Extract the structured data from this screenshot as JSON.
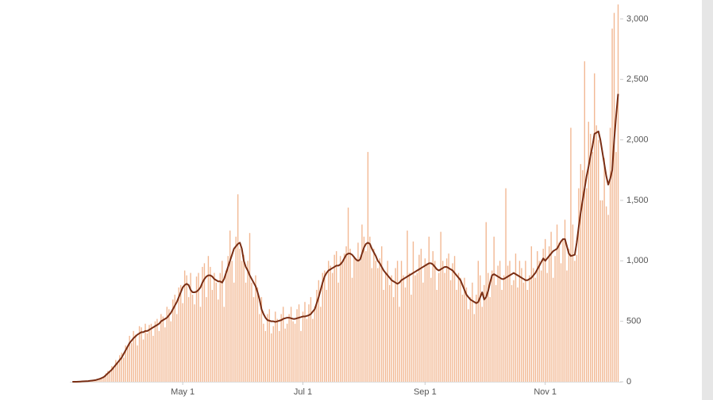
{
  "chart_data": {
    "type": "bar",
    "categories": [
      null,
      null,
      null,
      null,
      null,
      null,
      null,
      null,
      null,
      null,
      null,
      null,
      null,
      null,
      null,
      null,
      null,
      null,
      null,
      null,
      null,
      null,
      null,
      null,
      null,
      null,
      null,
      null,
      null,
      null,
      null,
      null,
      null,
      null,
      null,
      null,
      null,
      null,
      null,
      null,
      null,
      null,
      null,
      null,
      null,
      null,
      null,
      null,
      null,
      null,
      null,
      null,
      null,
      null,
      null,
      null,
      "May 1",
      null,
      null,
      null,
      null,
      null,
      null,
      null,
      null,
      null,
      null,
      null,
      null,
      null,
      null,
      null,
      null,
      null,
      null,
      null,
      null,
      null,
      null,
      null,
      null,
      null,
      null,
      null,
      null,
      null,
      null,
      null,
      null,
      null,
      null,
      null,
      null,
      null,
      null,
      null,
      null,
      null,
      null,
      null,
      null,
      null,
      null,
      null,
      null,
      null,
      null,
      null,
      null,
      null,
      null,
      null,
      null,
      null,
      null,
      null,
      null,
      "Jul 1",
      null,
      null,
      null,
      null,
      null,
      null,
      null,
      null,
      null,
      null,
      null,
      null,
      null,
      null,
      null,
      null,
      null,
      null,
      null,
      null,
      null,
      null,
      null,
      null,
      null,
      null,
      null,
      null,
      null,
      null,
      null,
      null,
      null,
      null,
      null,
      null,
      null,
      null,
      null,
      null,
      null,
      null,
      null,
      null,
      null,
      null,
      null,
      null,
      null,
      null,
      null,
      null,
      null,
      null,
      null,
      null,
      null,
      null,
      null,
      null,
      null,
      "Sep 1",
      null,
      null,
      null,
      null,
      null,
      null,
      null,
      null,
      null,
      null,
      null,
      null,
      null,
      null,
      null,
      null,
      null,
      null,
      null,
      null,
      null,
      null,
      null,
      null,
      null,
      null,
      null,
      null,
      null,
      null,
      null,
      null,
      null,
      null,
      null,
      null,
      null,
      null,
      null,
      null,
      null,
      null,
      null,
      null,
      null,
      null,
      null,
      null,
      null,
      null,
      null,
      null,
      null,
      null,
      null,
      null,
      null,
      null,
      null,
      null,
      "Nov 1",
      null,
      null,
      null,
      null,
      null,
      null,
      null,
      null,
      null,
      null,
      null,
      null,
      null,
      null,
      null,
      null,
      null,
      null,
      null,
      null,
      null,
      null,
      null,
      null,
      null,
      null,
      null,
      null,
      null,
      null,
      null,
      null,
      null,
      null,
      null,
      null,
      null
    ],
    "series": [
      {
        "type": "bar",
        "color": "#f2b893",
        "values": [
          0,
          0,
          2,
          0,
          3,
          4,
          5,
          6,
          8,
          10,
          12,
          10,
          20,
          18,
          30,
          40,
          35,
          70,
          90,
          80,
          130,
          110,
          180,
          150,
          220,
          240,
          200,
          300,
          280,
          380,
          320,
          420,
          390,
          300,
          460,
          450,
          350,
          480,
          400,
          470,
          480,
          380,
          500,
          520,
          420,
          560,
          540,
          450,
          620,
          600,
          500,
          680,
          720,
          560,
          780,
          800,
          650,
          920,
          880,
          700,
          900,
          720,
          640,
          870,
          900,
          620,
          950,
          980,
          700,
          1040,
          950,
          760,
          900,
          820,
          680,
          900,
          1000,
          620,
          920,
          1040,
          1250,
          1000,
          820,
          1200,
          1550,
          1100,
          1000,
          1050,
          820,
          1000,
          1230,
          820,
          700,
          880,
          780,
          560,
          700,
          480,
          420,
          560,
          600,
          400,
          460,
          580,
          520,
          420,
          560,
          620,
          440,
          480,
          560,
          620,
          500,
          480,
          600,
          640,
          420,
          580,
          660,
          520,
          640,
          700,
          520,
          620,
          760,
          840,
          620,
          900,
          920,
          760,
          1000,
          960,
          900,
          1050,
          1080,
          820,
          1040,
          980,
          1060,
          1120,
          1440,
          1100,
          860,
          1040,
          1020,
          1150,
          1000,
          1300,
          1200,
          1080,
          1900,
          1200,
          940,
          1100,
          1000,
          940,
          1020,
          1120,
          760,
          900,
          1000,
          800,
          880,
          700,
          940,
          1000,
          620,
          1000,
          880,
          780,
          1250,
          900,
          720,
          1160,
          880,
          900,
          1050,
          1100,
          820,
          1020,
          980,
          1200,
          860,
          1080,
          1000,
          760,
          900,
          1240,
          1000,
          900,
          1020,
          1060,
          840,
          980,
          1040,
          760,
          900,
          860,
          720,
          860,
          780,
          600,
          700,
          820,
          560,
          720,
          1000,
          880,
          620,
          800,
          1320,
          900,
          700,
          920,
          1200,
          800,
          960,
          1000,
          760,
          880,
          1600,
          960,
          1000,
          800,
          840,
          1060,
          780,
          1000,
          940,
          820,
          1000,
          760,
          880,
          1120,
          940,
          860,
          1080,
          1000,
          920,
          1100,
          1180,
          900,
          1120,
          1240,
          860,
          1040,
          1300,
          1150,
          980,
          1180,
          1340,
          920,
          1100,
          2100,
          1300,
          1000,
          1050,
          1600,
          1800,
          1750,
          2650,
          1600,
          2150,
          2050,
          1900,
          2550,
          2120,
          2000,
          1500,
          1500,
          1850,
          1450,
          1380,
          2100,
          2920,
          3050,
          1900,
          3120
        ]
      },
      {
        "type": "line",
        "color": "#7a2e14",
        "values": [
          0,
          0,
          0,
          1,
          2,
          3,
          4,
          5,
          6,
          8,
          10,
          12,
          15,
          20,
          25,
          32,
          40,
          55,
          70,
          85,
          100,
          120,
          140,
          160,
          180,
          200,
          230,
          260,
          290,
          320,
          340,
          360,
          375,
          390,
          400,
          410,
          410,
          420,
          420,
          430,
          440,
          450,
          460,
          470,
          480,
          500,
          510,
          520,
          530,
          550,
          570,
          600,
          630,
          660,
          700,
          740,
          780,
          800,
          810,
          800,
          760,
          740,
          740,
          745,
          760,
          780,
          820,
          850,
          870,
          880,
          880,
          870,
          850,
          840,
          830,
          830,
          820,
          850,
          900,
          950,
          1000,
          1050,
          1100,
          1120,
          1140,
          1150,
          1100,
          1000,
          950,
          920,
          880,
          850,
          820,
          790,
          740,
          680,
          600,
          560,
          530,
          510,
          505,
          500,
          500,
          495,
          500,
          505,
          510,
          520,
          525,
          530,
          530,
          525,
          520,
          520,
          525,
          530,
          535,
          540,
          540,
          545,
          550,
          560,
          580,
          600,
          650,
          700,
          760,
          820,
          870,
          900,
          920,
          930,
          940,
          950,
          960,
          960,
          970,
          990,
          1020,
          1050,
          1060,
          1060,
          1050,
          1030,
          1010,
          1000,
          1010,
          1060,
          1110,
          1140,
          1150,
          1140,
          1100,
          1070,
          1040,
          1000,
          980,
          950,
          920,
          900,
          880,
          860,
          840,
          830,
          820,
          810,
          820,
          840,
          850,
          860,
          870,
          880,
          890,
          900,
          910,
          920,
          930,
          940,
          950,
          960,
          970,
          980,
          980,
          970,
          950,
          930,
          920,
          930,
          940,
          950,
          950,
          940,
          930,
          920,
          900,
          880,
          860,
          840,
          800,
          760,
          720,
          700,
          680,
          670,
          660,
          650,
          660,
          700,
          740,
          680,
          700,
          750,
          820,
          880,
          890,
          880,
          870,
          860,
          850,
          850,
          860,
          870,
          880,
          890,
          900,
          890,
          880,
          870,
          860,
          850,
          840,
          840,
          850,
          860,
          880,
          900,
          930,
          960,
          990,
          1020,
          1000,
          1020,
          1040,
          1060,
          1080,
          1090,
          1100,
          1130,
          1160,
          1180,
          1180,
          1120,
          1060,
          1040,
          1045,
          1050,
          1150,
          1280,
          1400,
          1500,
          1600,
          1700,
          1780,
          1870,
          1950,
          2050,
          2060,
          2070,
          2000,
          1900,
          1800,
          1700,
          1630,
          1680,
          1750,
          2000,
          2200,
          2380
        ]
      }
    ],
    "ylim": [
      0,
      3150
    ],
    "yticks": [
      0,
      500,
      {
        "value": 1000,
        "label": "1,000"
      },
      {
        "value": 1500,
        "label": "1,500"
      },
      {
        "value": 2000,
        "label": "2,000"
      },
      {
        "value": 2500,
        "label": "2,500"
      },
      {
        "value": 3000,
        "label": "3,000"
      }
    ],
    "grid": false
  }
}
